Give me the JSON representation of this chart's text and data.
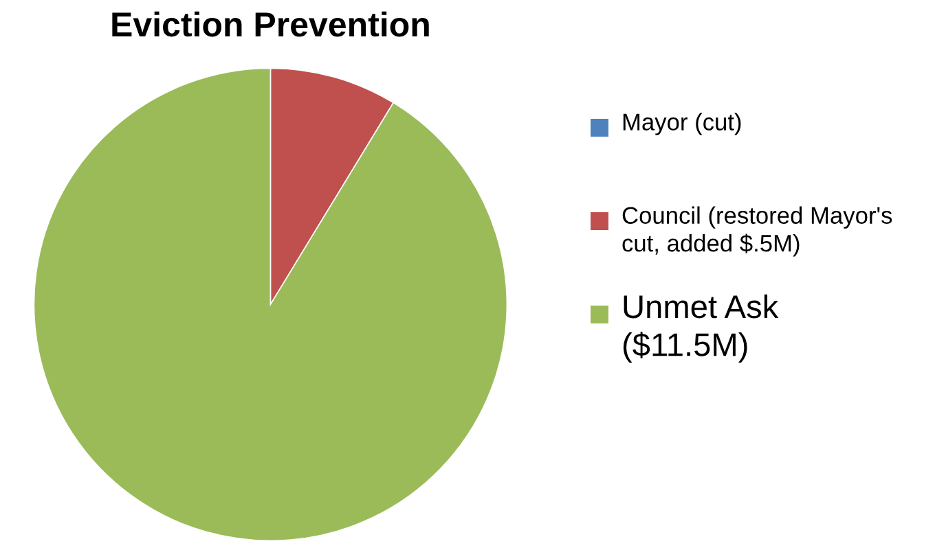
{
  "chart_data": {
    "type": "pie",
    "title": "Eviction Prevention",
    "categories": [
      "Mayor (cut)",
      "Council (restored Mayor's cut, added $.5M)",
      "Unmet Ask ($11.5M)"
    ],
    "values": [
      0,
      8.7,
      91.3
    ],
    "colors": [
      "#4f81bd",
      "#c0504d",
      "#9bbb59"
    ],
    "legend": "right"
  }
}
